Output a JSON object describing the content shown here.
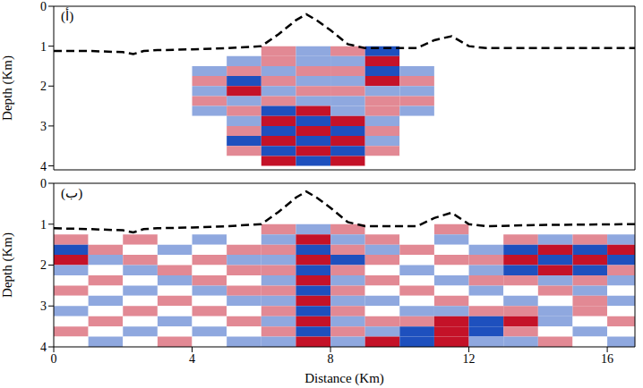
{
  "chart_data": [
    {
      "type": "line",
      "title": "(أ)",
      "y_label": "Depth (Km)",
      "tick_labels": "y",
      "grid": false,
      "xlim": [
        0,
        16.8
      ],
      "xticks": [
        0,
        4,
        8,
        12,
        16
      ],
      "ylim": [
        0,
        4.1
      ],
      "yticks": [
        0,
        1,
        2,
        3,
        4
      ],
      "series": [
        {
          "color": "#000000",
          "line_style": "dashed",
          "x": [
            0,
            1,
            2,
            2.3,
            2.6,
            3,
            4,
            5,
            6,
            6.5,
            7,
            7.3,
            7.6,
            8,
            8.5,
            9,
            10,
            10.5,
            11,
            11.5,
            12,
            12.5,
            14,
            16.8
          ],
          "values": [
            1.12,
            1.12,
            1.15,
            1.2,
            1.12,
            1.1,
            1.08,
            1.05,
            1.0,
            0.7,
            0.35,
            0.2,
            0.35,
            0.6,
            0.95,
            1.05,
            1.05,
            1.05,
            0.85,
            0.75,
            1.0,
            1.05,
            1.05,
            1.05
          ]
        }
      ],
      "cells": {
        "clim": [
          -2,
          2
        ],
        "x": [
          0,
          1,
          2,
          3,
          4,
          5,
          6,
          7,
          8,
          9,
          10,
          11,
          12,
          13,
          14,
          15,
          16,
          17
        ],
        "depth": [
          1,
          1.25,
          1.5,
          1.75,
          2,
          2.25,
          2.5,
          2.75,
          3,
          3.25,
          3.5,
          3.75,
          4
        ],
        "values": [
          [
            0,
            0,
            0,
            0,
            0,
            0,
            1,
            -1,
            1,
            -2,
            0,
            0,
            0,
            0,
            0,
            0,
            0
          ],
          [
            0,
            0,
            0,
            0,
            0,
            -1,
            1,
            -1,
            -1,
            2,
            0,
            0,
            0,
            0,
            0,
            0,
            0
          ],
          [
            0,
            0,
            0,
            0,
            -1,
            1,
            -1,
            1,
            1,
            -2,
            -1,
            0,
            0,
            0,
            0,
            0,
            0
          ],
          [
            0,
            0,
            0,
            0,
            1,
            -2,
            1,
            -1,
            -1,
            2,
            1,
            0,
            0,
            0,
            0,
            0,
            0
          ],
          [
            0,
            0,
            0,
            0,
            -1,
            2,
            -1,
            1,
            1,
            -1,
            -1,
            0,
            0,
            0,
            0,
            0,
            0
          ],
          [
            0,
            0,
            0,
            0,
            1,
            -1,
            1,
            -1,
            -1,
            1,
            1,
            0,
            0,
            0,
            0,
            0,
            0
          ],
          [
            0,
            0,
            0,
            0,
            -1,
            1,
            -2,
            2,
            -1,
            1,
            -1,
            0,
            0,
            0,
            0,
            0,
            0
          ],
          [
            0,
            0,
            0,
            0,
            0,
            -1,
            2,
            -2,
            2,
            -1,
            0,
            0,
            0,
            0,
            0,
            0,
            0
          ],
          [
            0,
            0,
            0,
            0,
            0,
            1,
            -2,
            2,
            -2,
            1,
            0,
            0,
            0,
            0,
            0,
            0,
            0
          ],
          [
            0,
            0,
            0,
            0,
            0,
            -2,
            2,
            -2,
            2,
            -1,
            0,
            0,
            0,
            0,
            0,
            0,
            0
          ],
          [
            0,
            0,
            0,
            0,
            0,
            1,
            -2,
            2,
            -2,
            1,
            0,
            0,
            0,
            0,
            0,
            0,
            0
          ],
          [
            0,
            0,
            0,
            0,
            0,
            0,
            2,
            -2,
            2,
            0,
            0,
            0,
            0,
            0,
            0,
            0,
            0
          ]
        ]
      }
    },
    {
      "type": "line",
      "title": "(ب)",
      "x_label": "Distance (Km)",
      "y_label": "Depth (Km)",
      "tick_labels": true,
      "grid": false,
      "xlim": [
        0,
        16.8
      ],
      "xticks": [
        0,
        4,
        8,
        12,
        16
      ],
      "ylim": [
        0,
        4
      ],
      "yticks": [
        0,
        1,
        2,
        3,
        4
      ],
      "series": [
        {
          "color": "#000000",
          "line_style": "dashed",
          "x": [
            0,
            1,
            2,
            2.3,
            2.6,
            3,
            4,
            5,
            6,
            6.5,
            7,
            7.3,
            7.6,
            8,
            8.5,
            9,
            10,
            10.5,
            11,
            11.5,
            12,
            12.5,
            14,
            16.8
          ],
          "values": [
            1.1,
            1.12,
            1.15,
            1.2,
            1.12,
            1.1,
            1.08,
            1.05,
            1.0,
            0.7,
            0.35,
            0.2,
            0.35,
            0.6,
            0.95,
            1.05,
            1.05,
            1.05,
            0.85,
            0.72,
            1.0,
            1.05,
            1.02,
            1.0
          ]
        }
      ],
      "cells": {
        "clim": [
          -2,
          2
        ],
        "x": [
          0,
          1,
          2,
          3,
          4,
          5,
          6,
          7,
          8,
          9,
          10,
          11,
          12,
          13,
          14,
          15,
          16,
          17
        ],
        "depth": [
          1,
          1.25,
          1.5,
          1.75,
          2,
          2.25,
          2.5,
          2.75,
          3,
          3.25,
          3.5,
          3.75,
          4
        ],
        "values": [
          [
            0,
            0,
            0,
            0,
            0,
            0,
            1,
            -1,
            1,
            0,
            0,
            1,
            0,
            0,
            0,
            0,
            0
          ],
          [
            1,
            0,
            1,
            0,
            -1,
            0,
            -1,
            2,
            -1,
            1,
            0,
            -1,
            0,
            1,
            -1,
            1,
            -1
          ],
          [
            -2,
            1,
            0,
            -1,
            0,
            1,
            1,
            -2,
            1,
            -1,
            1,
            0,
            -1,
            -2,
            2,
            -2,
            2
          ],
          [
            2,
            -1,
            1,
            0,
            1,
            -1,
            -1,
            2,
            -2,
            1,
            0,
            1,
            1,
            2,
            -2,
            2,
            -2
          ],
          [
            -1,
            0,
            -1,
            1,
            0,
            1,
            1,
            -2,
            1,
            0,
            -1,
            0,
            -1,
            -2,
            2,
            -2,
            1
          ],
          [
            0,
            1,
            0,
            -1,
            1,
            0,
            -1,
            2,
            -1,
            1,
            0,
            -1,
            1,
            1,
            -1,
            1,
            -1
          ],
          [
            1,
            0,
            -1,
            0,
            -1,
            1,
            1,
            -2,
            1,
            0,
            1,
            0,
            -1,
            0,
            1,
            -1,
            0
          ],
          [
            0,
            -1,
            0,
            1,
            0,
            -1,
            -1,
            2,
            -1,
            -1,
            0,
            1,
            0,
            -1,
            0,
            1,
            -1
          ],
          [
            -1,
            0,
            1,
            0,
            1,
            0,
            1,
            -2,
            1,
            0,
            -1,
            -1,
            1,
            1,
            -1,
            1,
            0
          ],
          [
            0,
            1,
            0,
            -1,
            0,
            1,
            -1,
            2,
            -1,
            1,
            1,
            2,
            -2,
            2,
            -1,
            0,
            1
          ],
          [
            1,
            0,
            -1,
            0,
            -1,
            0,
            1,
            -2,
            1,
            -1,
            -2,
            2,
            -2,
            1,
            0,
            -1,
            0
          ],
          [
            0,
            -1,
            0,
            1,
            0,
            -1,
            -1,
            2,
            -1,
            2,
            -2,
            2,
            -1,
            -1,
            1,
            0,
            -1
          ]
        ]
      }
    }
  ]
}
